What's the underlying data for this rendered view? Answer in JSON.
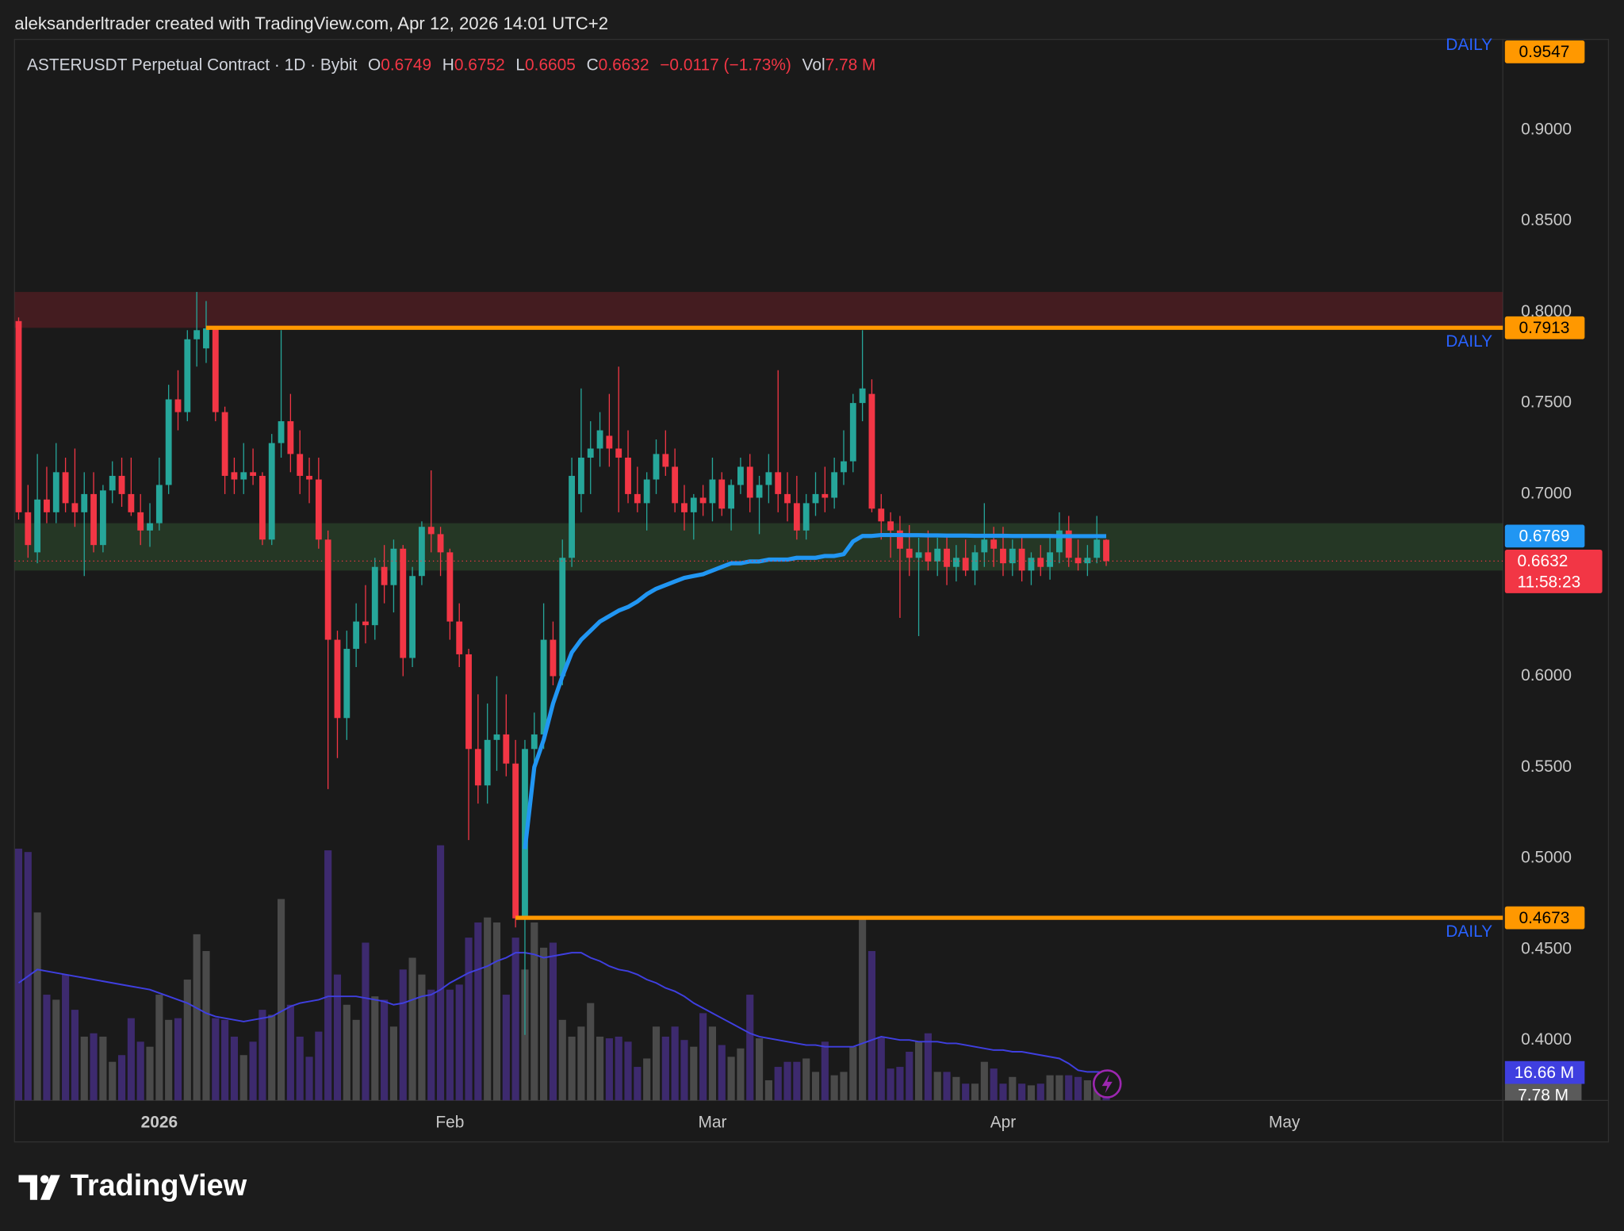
{
  "chart_data": {
    "type": "candlestick",
    "attribution": "aleksanderltrader created with TradingView.com, Apr 12, 2026 14:01 UTC+2",
    "brand": "TradingView",
    "header": {
      "symbol": "ASTERUSDT Perpetual Contract · 1D · Bybit",
      "fields": [
        "O",
        "H",
        "L",
        "C"
      ],
      "change": "−0.0117 (−1.73%)",
      "vol_label": "Vol"
    },
    "up_color": "#26a69a",
    "down_color": "#f23645",
    "volume_colors": {
      "up": "#4a4a4a",
      "down": "#3d2a6e"
    },
    "ohlc": [
      [
        0.795,
        0.797,
        0.686,
        0.69
      ],
      [
        0.69,
        0.705,
        0.665,
        0.672
      ],
      [
        0.668,
        0.722,
        0.662,
        0.697
      ],
      [
        0.697,
        0.715,
        0.684,
        0.69
      ],
      [
        0.69,
        0.728,
        0.684,
        0.712
      ],
      [
        0.712,
        0.72,
        0.69,
        0.695
      ],
      [
        0.695,
        0.725,
        0.682,
        0.69
      ],
      [
        0.69,
        0.712,
        0.655,
        0.7
      ],
      [
        0.7,
        0.712,
        0.668,
        0.672
      ],
      [
        0.672,
        0.705,
        0.668,
        0.702
      ],
      [
        0.702,
        0.718,
        0.695,
        0.71
      ],
      [
        0.71,
        0.72,
        0.693,
        0.7
      ],
      [
        0.7,
        0.72,
        0.688,
        0.69
      ],
      [
        0.69,
        0.7,
        0.672,
        0.68
      ],
      [
        0.68,
        0.695,
        0.671,
        0.684
      ],
      [
        0.684,
        0.72,
        0.68,
        0.705
      ],
      [
        0.705,
        0.76,
        0.7,
        0.752
      ],
      [
        0.752,
        0.768,
        0.735,
        0.745
      ],
      [
        0.745,
        0.79,
        0.74,
        0.785
      ],
      [
        0.785,
        0.811,
        0.77,
        0.79
      ],
      [
        0.78,
        0.806,
        0.772,
        0.791
      ],
      [
        0.791,
        0.792,
        0.74,
        0.745
      ],
      [
        0.745,
        0.748,
        0.7,
        0.71
      ],
      [
        0.712,
        0.72,
        0.7,
        0.708
      ],
      [
        0.708,
        0.728,
        0.7,
        0.712
      ],
      [
        0.712,
        0.725,
        0.705,
        0.71
      ],
      [
        0.71,
        0.712,
        0.672,
        0.675
      ],
      [
        0.675,
        0.733,
        0.672,
        0.728
      ],
      [
        0.728,
        0.79,
        0.72,
        0.74
      ],
      [
        0.74,
        0.755,
        0.712,
        0.722
      ],
      [
        0.722,
        0.735,
        0.7,
        0.71
      ],
      [
        0.71,
        0.72,
        0.695,
        0.708
      ],
      [
        0.708,
        0.72,
        0.67,
        0.675
      ],
      [
        0.675,
        0.68,
        0.538,
        0.62
      ],
      [
        0.62,
        0.625,
        0.555,
        0.577
      ],
      [
        0.577,
        0.625,
        0.565,
        0.615
      ],
      [
        0.615,
        0.64,
        0.605,
        0.63
      ],
      [
        0.63,
        0.65,
        0.618,
        0.628
      ],
      [
        0.628,
        0.665,
        0.62,
        0.66
      ],
      [
        0.66,
        0.672,
        0.64,
        0.65
      ],
      [
        0.65,
        0.675,
        0.635,
        0.67
      ],
      [
        0.67,
        0.672,
        0.6,
        0.61
      ],
      [
        0.61,
        0.66,
        0.605,
        0.655
      ],
      [
        0.655,
        0.685,
        0.65,
        0.682
      ],
      [
        0.682,
        0.713,
        0.668,
        0.678
      ],
      [
        0.678,
        0.682,
        0.655,
        0.668
      ],
      [
        0.668,
        0.67,
        0.62,
        0.63
      ],
      [
        0.63,
        0.64,
        0.605,
        0.612
      ],
      [
        0.612,
        0.615,
        0.51,
        0.56
      ],
      [
        0.56,
        0.59,
        0.53,
        0.54
      ],
      [
        0.54,
        0.585,
        0.53,
        0.565
      ],
      [
        0.565,
        0.6,
        0.548,
        0.568
      ],
      [
        0.568,
        0.59,
        0.545,
        0.552
      ],
      [
        0.552,
        0.565,
        0.462,
        0.467
      ],
      [
        0.467,
        0.565,
        0.403,
        0.56
      ],
      [
        0.56,
        0.58,
        0.55,
        0.568
      ],
      [
        0.568,
        0.64,
        0.56,
        0.62
      ],
      [
        0.62,
        0.63,
        0.595,
        0.6
      ],
      [
        0.6,
        0.675,
        0.595,
        0.665
      ],
      [
        0.665,
        0.72,
        0.66,
        0.71
      ],
      [
        0.7,
        0.758,
        0.69,
        0.72
      ],
      [
        0.72,
        0.74,
        0.7,
        0.725
      ],
      [
        0.725,
        0.745,
        0.715,
        0.735
      ],
      [
        0.732,
        0.755,
        0.715,
        0.725
      ],
      [
        0.725,
        0.77,
        0.69,
        0.72
      ],
      [
        0.72,
        0.735,
        0.695,
        0.7
      ],
      [
        0.7,
        0.715,
        0.69,
        0.695
      ],
      [
        0.695,
        0.712,
        0.68,
        0.708
      ],
      [
        0.708,
        0.73,
        0.7,
        0.722
      ],
      [
        0.722,
        0.735,
        0.71,
        0.715
      ],
      [
        0.715,
        0.725,
        0.69,
        0.695
      ],
      [
        0.695,
        0.705,
        0.68,
        0.69
      ],
      [
        0.69,
        0.7,
        0.675,
        0.698
      ],
      [
        0.698,
        0.705,
        0.688,
        0.695
      ],
      [
        0.695,
        0.72,
        0.685,
        0.708
      ],
      [
        0.708,
        0.712,
        0.688,
        0.692
      ],
      [
        0.692,
        0.708,
        0.68,
        0.705
      ],
      [
        0.705,
        0.72,
        0.7,
        0.715
      ],
      [
        0.715,
        0.722,
        0.69,
        0.698
      ],
      [
        0.698,
        0.71,
        0.678,
        0.705
      ],
      [
        0.705,
        0.722,
        0.695,
        0.712
      ],
      [
        0.712,
        0.768,
        0.69,
        0.7
      ],
      [
        0.7,
        0.712,
        0.685,
        0.695
      ],
      [
        0.695,
        0.71,
        0.675,
        0.68
      ],
      [
        0.68,
        0.7,
        0.675,
        0.695
      ],
      [
        0.695,
        0.712,
        0.688,
        0.7
      ],
      [
        0.7,
        0.715,
        0.69,
        0.698
      ],
      [
        0.698,
        0.72,
        0.692,
        0.712
      ],
      [
        0.712,
        0.735,
        0.705,
        0.718
      ],
      [
        0.718,
        0.755,
        0.712,
        0.75
      ],
      [
        0.75,
        0.79,
        0.74,
        0.758
      ],
      [
        0.755,
        0.763,
        0.69,
        0.692
      ],
      [
        0.692,
        0.7,
        0.675,
        0.685
      ],
      [
        0.685,
        0.69,
        0.665,
        0.68
      ],
      [
        0.68,
        0.688,
        0.632,
        0.67
      ],
      [
        0.67,
        0.683,
        0.655,
        0.665
      ],
      [
        0.665,
        0.676,
        0.622,
        0.668
      ],
      [
        0.668,
        0.68,
        0.658,
        0.663
      ],
      [
        0.663,
        0.676,
        0.655,
        0.67
      ],
      [
        0.67,
        0.678,
        0.65,
        0.66
      ],
      [
        0.66,
        0.672,
        0.652,
        0.665
      ],
      [
        0.665,
        0.675,
        0.655,
        0.658
      ],
      [
        0.658,
        0.672,
        0.65,
        0.668
      ],
      [
        0.668,
        0.695,
        0.66,
        0.675
      ],
      [
        0.675,
        0.682,
        0.66,
        0.67
      ],
      [
        0.67,
        0.682,
        0.655,
        0.662
      ],
      [
        0.662,
        0.675,
        0.655,
        0.67
      ],
      [
        0.67,
        0.678,
        0.652,
        0.658
      ],
      [
        0.658,
        0.668,
        0.65,
        0.665
      ],
      [
        0.665,
        0.672,
        0.655,
        0.66
      ],
      [
        0.66,
        0.676,
        0.653,
        0.668
      ],
      [
        0.668,
        0.69,
        0.662,
        0.68
      ],
      [
        0.68,
        0.688,
        0.66,
        0.665
      ],
      [
        0.665,
        0.675,
        0.658,
        0.662
      ],
      [
        0.662,
        0.672,
        0.655,
        0.665
      ],
      [
        0.665,
        0.688,
        0.662,
        0.675
      ],
      [
        0.6749,
        0.6752,
        0.6605,
        0.6632
      ]
    ],
    "volume": [
      150,
      148,
      112,
      63,
      60,
      75,
      54,
      38,
      40,
      38,
      23,
      27,
      49,
      35,
      32,
      63,
      48,
      49,
      72,
      99,
      89,
      49,
      48,
      38,
      27,
      35,
      54,
      51,
      120,
      57,
      38,
      26,
      41,
      149,
      75,
      57,
      48,
      94,
      62,
      60,
      44,
      78,
      85,
      75,
      66,
      152,
      66,
      69,
      97,
      106,
      109,
      106,
      63,
      97,
      78,
      106,
      91,
      94,
      48,
      38,
      44,
      58,
      38,
      37,
      38,
      35,
      20,
      25,
      44,
      38,
      44,
      36,
      32,
      52,
      44,
      33,
      26,
      31,
      63,
      37,
      12,
      20,
      23,
      23,
      25,
      17,
      35,
      15,
      17,
      32,
      109,
      89,
      38,
      19,
      20,
      29,
      35,
      40,
      17,
      17,
      14,
      10,
      10,
      23,
      19,
      10,
      14,
      10,
      9,
      10,
      15,
      15,
      15,
      14,
      12,
      10,
      7.78
    ],
    "volume_ma": [
      70,
      74,
      78,
      77,
      76,
      75,
      74,
      73,
      72,
      71,
      70,
      69,
      68,
      67,
      66,
      64,
      62,
      60,
      58,
      55,
      52,
      50,
      49,
      48,
      47,
      48,
      49,
      50,
      53,
      56,
      58,
      59,
      60,
      62,
      62,
      62,
      62,
      61,
      60,
      59,
      57,
      58,
      60,
      62,
      63,
      66,
      70,
      73,
      76,
      78,
      80,
      83,
      85,
      88,
      88,
      87,
      85,
      86,
      87,
      88,
      88,
      85,
      83,
      80,
      78,
      77,
      75,
      72,
      70,
      67,
      65,
      62,
      58,
      55,
      52,
      49,
      46,
      43,
      40,
      38,
      37,
      36,
      35,
      34,
      33,
      33,
      32,
      32,
      32,
      32,
      34,
      36,
      38,
      37,
      36,
      36,
      35,
      35,
      35,
      34,
      34,
      33,
      32,
      31,
      30,
      30,
      29,
      29,
      28,
      27,
      26,
      25,
      22,
      18,
      17,
      17,
      16.66
    ],
    "volume_last_label": "7.78 M",
    "volume_ma_last_label": "16.66 M",
    "volume_ma_color": "#3f3fe0",
    "vwap": [
      null,
      null,
      null,
      null,
      null,
      null,
      null,
      null,
      null,
      null,
      null,
      null,
      null,
      null,
      null,
      null,
      null,
      null,
      null,
      null,
      null,
      null,
      null,
      null,
      null,
      null,
      null,
      null,
      null,
      null,
      null,
      null,
      null,
      null,
      null,
      null,
      null,
      null,
      null,
      null,
      null,
      null,
      null,
      null,
      null,
      null,
      null,
      null,
      null,
      null,
      null,
      null,
      null,
      null,
      0.505,
      0.55,
      0.565,
      0.585,
      0.6,
      0.613,
      0.62,
      0.625,
      0.63,
      0.633,
      0.636,
      0.638,
      0.641,
      0.645,
      0.648,
      0.65,
      0.652,
      0.654,
      0.655,
      0.656,
      0.658,
      0.66,
      0.662,
      0.662,
      0.663,
      0.663,
      0.664,
      0.664,
      0.664,
      0.665,
      0.665,
      0.665,
      0.666,
      0.666,
      0.667,
      0.674,
      0.677,
      0.677,
      0.6775,
      0.6775,
      0.6775,
      0.6774,
      0.6774,
      0.6773,
      0.6773,
      0.6772,
      0.6772,
      0.6772,
      0.6771,
      0.6771,
      0.6771,
      0.6771,
      0.677,
      0.677,
      0.677,
      0.677,
      0.677,
      0.6769,
      0.6769,
      0.6769,
      0.6769,
      0.6769,
      0.6769
    ],
    "vwap_color": "#2196f3",
    "countdown": "11:58:23",
    "levels": [
      {
        "label": "DAILY",
        "value": 0.9547
      },
      {
        "label": "DAILY",
        "value": 0.7913,
        "start": 20
      },
      {
        "label": "DAILY",
        "value": 0.4673,
        "start": 53
      }
    ],
    "level_color": "#ff9800",
    "zones": [
      {
        "from": 0.7913,
        "to": 0.811,
        "color": "rgba(120,30,40,0.45)"
      },
      {
        "from": 0.658,
        "to": 0.684,
        "color": "rgba(50,90,50,0.45)"
      }
    ],
    "xlim": [
      -0.44,
      158.3
    ],
    "xticks": [
      {
        "value": 15,
        "label": "2026"
      },
      {
        "value": 46,
        "label": "Feb"
      },
      {
        "value": 74,
        "label": "Mar"
      },
      {
        "value": 105,
        "label": "Apr"
      },
      {
        "value": 135,
        "label": "May"
      }
    ],
    "ylim": [
      0.367,
      0.9497
    ],
    "yticks": [
      {
        "value": 0.9,
        "label": "0.9000"
      },
      {
        "value": 0.85,
        "label": "0.8500"
      },
      {
        "value": 0.8,
        "label": "0.8000"
      },
      {
        "value": 0.75,
        "label": "0.7500"
      },
      {
        "value": 0.7,
        "label": "0.7000"
      },
      {
        "value": 0.6,
        "label": "0.6000"
      },
      {
        "value": 0.55,
        "label": "0.5500"
      },
      {
        "value": 0.5,
        "label": "0.5000"
      },
      {
        "value": 0.45,
        "label": "0.4500"
      },
      {
        "value": 0.4,
        "label": "0.4000"
      }
    ],
    "grid": false
  }
}
